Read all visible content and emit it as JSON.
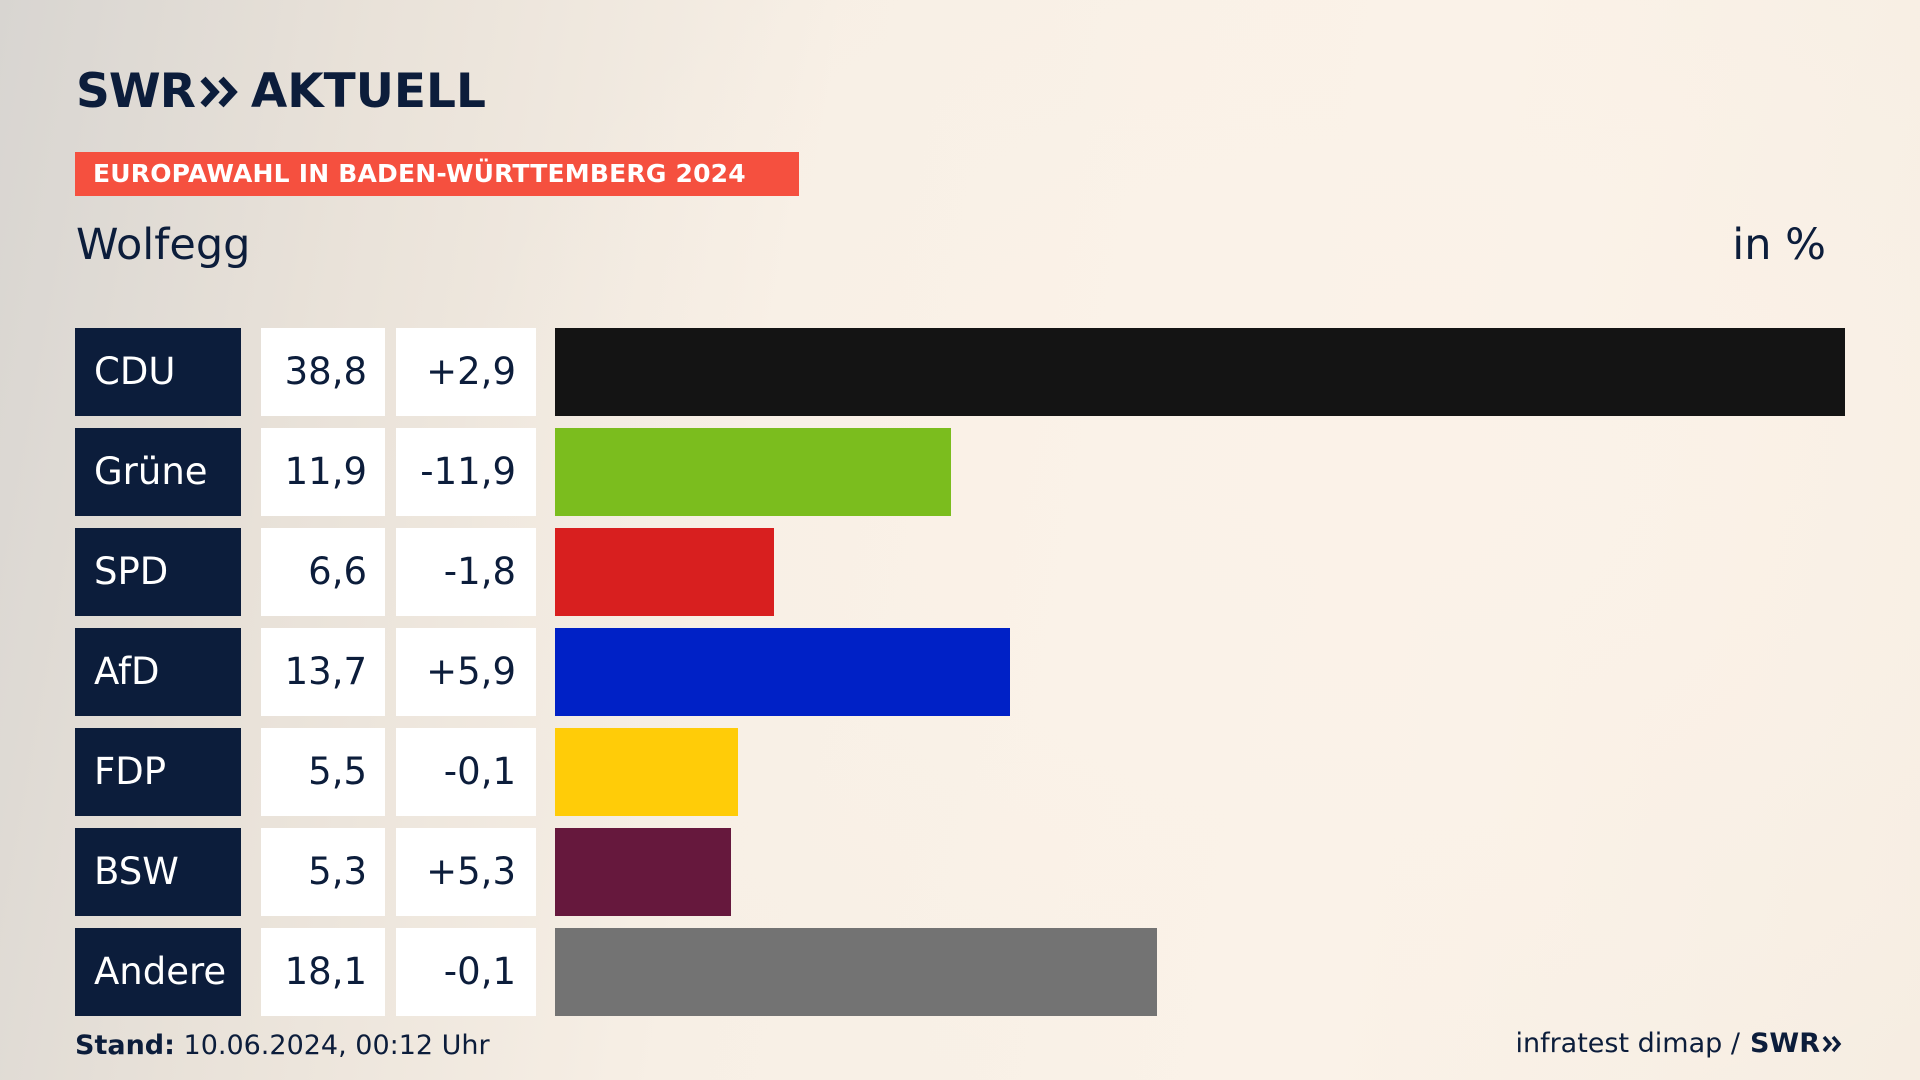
{
  "brand": {
    "swr": "SWR",
    "aktuell": "AKTUELL"
  },
  "header": {
    "tag": "EUROPAWAHL IN BADEN-WÜRTTEMBERG 2024",
    "place": "Wolfegg",
    "unit": "in %"
  },
  "footer": {
    "stand_label": "Stand:",
    "stand_value": "10.06.2024, 00:12 Uhr",
    "source": "infratest dimap /",
    "source_brand": "SWR"
  },
  "chart_data": {
    "type": "bar",
    "orientation": "horizontal",
    "categories": [
      "CDU",
      "Grüne",
      "SPD",
      "AfD",
      "FDP",
      "BSW",
      "Andere"
    ],
    "values": [
      38.8,
      11.9,
      6.6,
      13.7,
      5.5,
      5.3,
      18.1
    ],
    "value_labels": [
      "38,8",
      "11,9",
      "6,6",
      "13,7",
      "5,5",
      "5,3",
      "18,1"
    ],
    "change_labels": [
      "+2,9",
      "-11,9",
      "-1,8",
      "+5,9",
      "-0,1",
      "+5,3",
      "-0,1"
    ],
    "changes": [
      2.9,
      -11.9,
      -1.8,
      5.9,
      -0.1,
      5.3,
      -0.1
    ],
    "colors": [
      "#141414",
      "#7bbd1e",
      "#d81f1f",
      "#0021c6",
      "#ffcc08",
      "#66183d",
      "#737373"
    ],
    "xlim": [
      0,
      38.8
    ]
  }
}
